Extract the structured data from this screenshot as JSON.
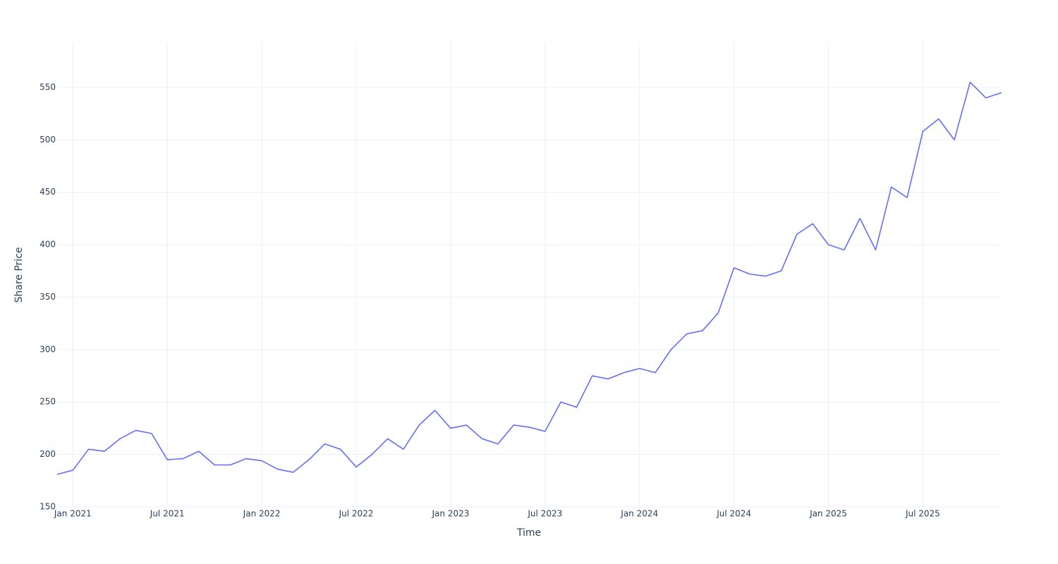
{
  "chart_data": {
    "type": "line",
    "x_label": "Time",
    "y_label": "Share Price",
    "x": [
      "2020-12",
      "2021-01",
      "2021-02",
      "2021-03",
      "2021-04",
      "2021-05",
      "2021-06",
      "2021-07",
      "2021-08",
      "2021-09",
      "2021-10",
      "2021-11",
      "2021-12",
      "2022-01",
      "2022-02",
      "2022-03",
      "2022-04",
      "2022-05",
      "2022-06",
      "2022-07",
      "2022-08",
      "2022-09",
      "2022-10",
      "2022-11",
      "2022-12",
      "2023-01",
      "2023-02",
      "2023-03",
      "2023-04",
      "2023-05",
      "2023-06",
      "2023-07",
      "2023-08",
      "2023-09",
      "2023-10",
      "2023-11",
      "2023-12",
      "2024-01",
      "2024-02",
      "2024-03",
      "2024-04",
      "2024-05",
      "2024-06",
      "2024-07",
      "2024-08",
      "2024-09",
      "2024-10",
      "2024-11",
      "2024-12",
      "2025-01",
      "2025-02",
      "2025-03",
      "2025-04",
      "2025-05",
      "2025-06",
      "2025-07",
      "2025-08",
      "2025-09",
      "2025-10",
      "2025-11",
      "2025-12"
    ],
    "series": [
      {
        "color": "#636efa",
        "values": [
          181,
          185,
          205,
          203,
          215,
          223,
          220,
          195,
          196,
          203,
          190,
          190,
          196,
          194,
          186,
          183,
          195,
          210,
          205,
          188,
          200,
          215,
          205,
          228,
          242,
          225,
          228,
          215,
          210,
          228,
          226,
          222,
          250,
          245,
          275,
          272,
          278,
          282,
          278,
          300,
          315,
          318,
          335,
          378,
          372,
          370,
          375,
          410,
          420,
          400,
          395,
          425,
          395,
          455,
          445,
          508,
          520,
          500,
          555,
          540,
          545
        ]
      }
    ],
    "xlim": [
      "2020-12",
      "2025-12"
    ],
    "xticks": [
      {
        "value": "2021-01",
        "label": "Jan 2021"
      },
      {
        "value": "2021-07",
        "label": "Jul 2021"
      },
      {
        "value": "2022-01",
        "label": "Jan 2022"
      },
      {
        "value": "2022-07",
        "label": "Jul 2022"
      },
      {
        "value": "2023-01",
        "label": "Jan 2023"
      },
      {
        "value": "2023-07",
        "label": "Jul 2023"
      },
      {
        "value": "2024-01",
        "label": "Jan 2024"
      },
      {
        "value": "2024-07",
        "label": "Jul 2024"
      },
      {
        "value": "2025-01",
        "label": "Jan 2025"
      },
      {
        "value": "2025-07",
        "label": "Jul 2025"
      }
    ],
    "ylim": [
      150,
      593
    ],
    "yticks": [
      150,
      200,
      250,
      300,
      350,
      400,
      450,
      500,
      550
    ],
    "grid": true
  }
}
